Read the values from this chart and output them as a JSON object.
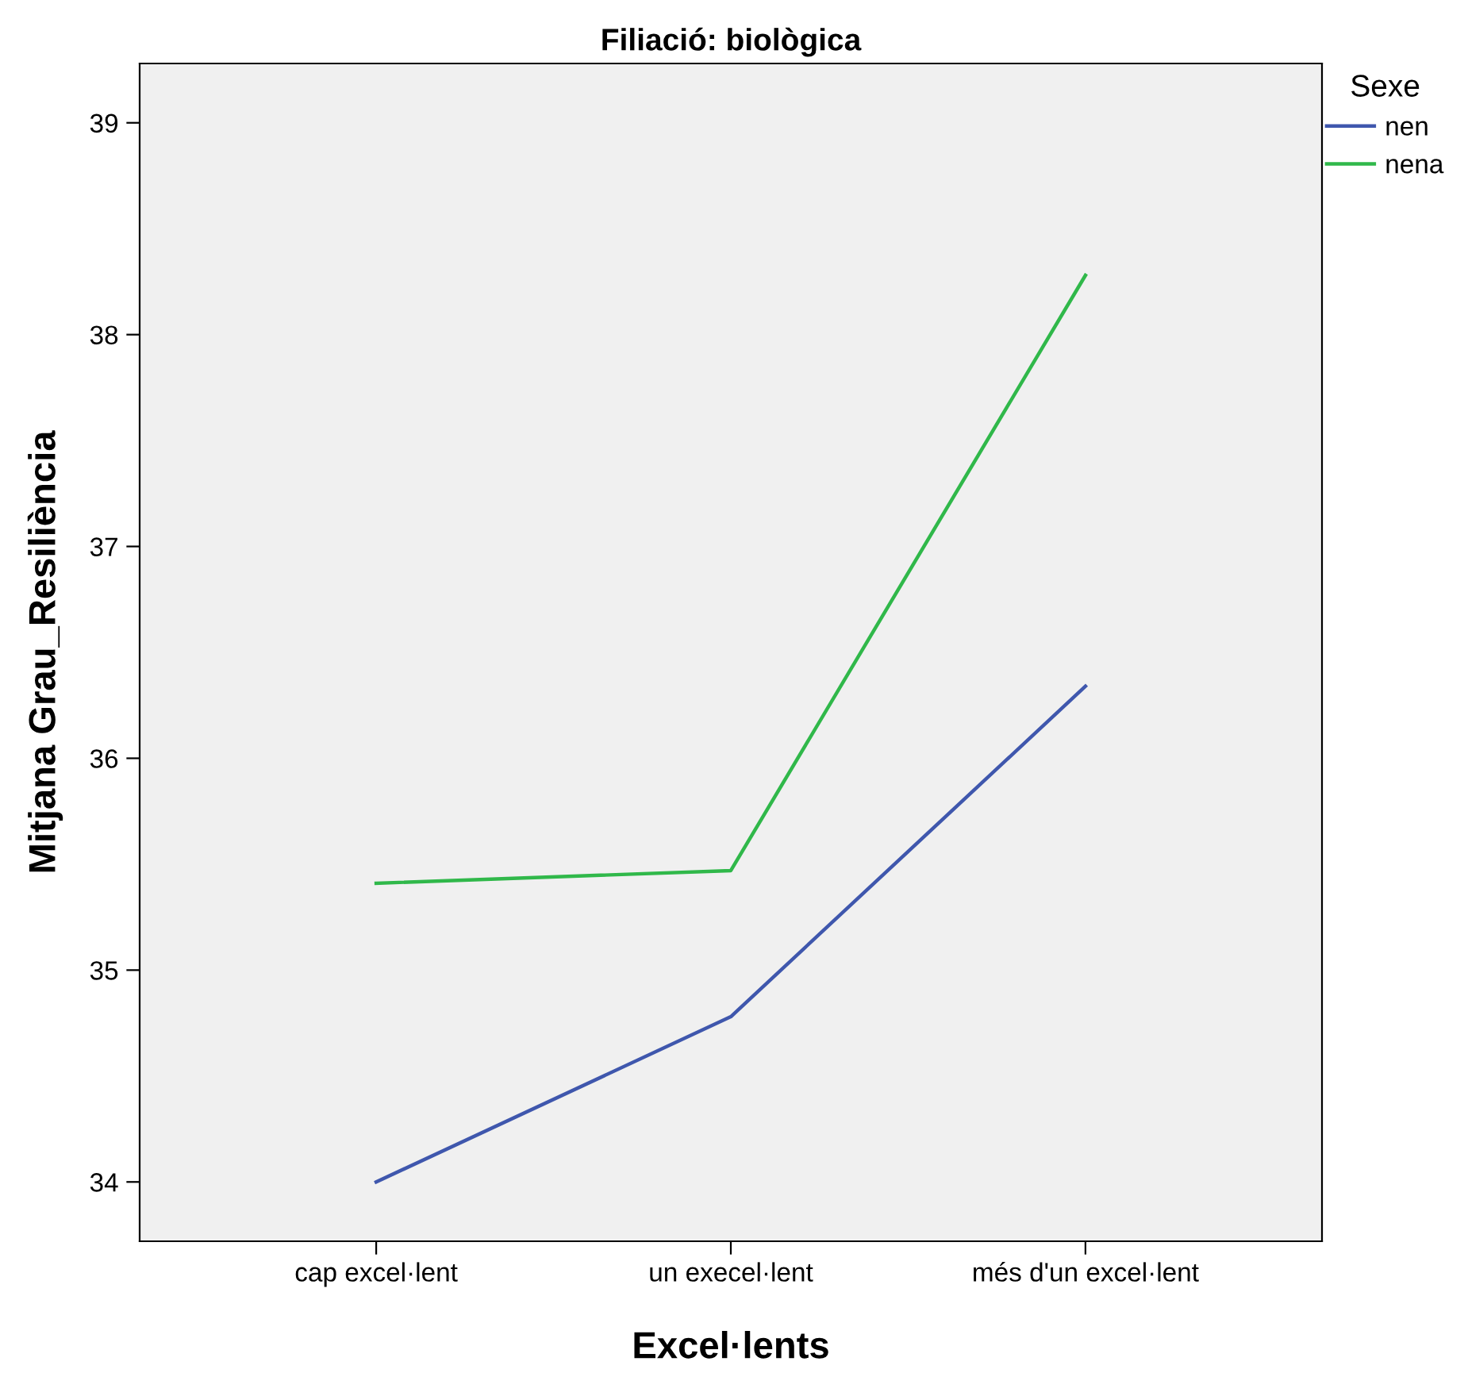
{
  "chart_data": {
    "type": "line",
    "title": "Filiació: biològica",
    "xlabel": "Excel·lents",
    "ylabel": "Mitjana Grau_Resiliència",
    "legend_title": "Sexe",
    "categories": [
      "cap excel·lent",
      "un execel·lent",
      "més d'un excel·lent"
    ],
    "series": [
      {
        "name": "nen",
        "color": "#3f57ad",
        "values": [
          34.0,
          34.78,
          36.34
        ]
      },
      {
        "name": "nena",
        "color": "#30b84a",
        "values": [
          35.41,
          35.47,
          38.28
        ]
      }
    ],
    "ylim": [
      33.72,
      39.28
    ],
    "yticks": [
      34,
      35,
      36,
      37,
      38,
      39
    ],
    "grid": false,
    "legend": "top right",
    "marker": "none",
    "line_style": "solid"
  }
}
